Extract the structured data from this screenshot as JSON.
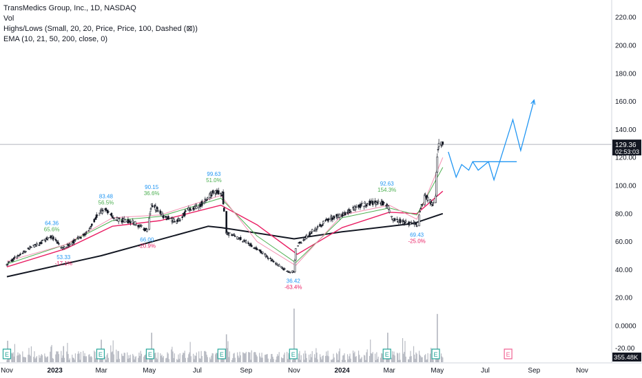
{
  "legend": {
    "title": "TransMedics Group, Inc., 1D, NASDAQ",
    "vol": "Vol",
    "highs_lows": "Highs/Lows (Small, 20, 20, Price, Price, 100, Dashed (⊠))",
    "ema": "EMA (10, 21, 50, 200, close, 0)"
  },
  "price_badge": {
    "price": "129.36",
    "countdown": "02:53:03",
    "color": "#131722"
  },
  "volume_badge": {
    "value": "355.48K"
  },
  "colors": {
    "candle": "#131722",
    "ema10": "#e91e63",
    "ema21": "#4caf50",
    "ema50": "#f48fb1",
    "ema200": "#131722",
    "projection": "#2196f3",
    "pivot_high_text": "#2196f3",
    "pivot_low_text": "#e91e63",
    "earnings_past": "#26a69a",
    "earnings_future": "#f06292",
    "volume": "#b2b5be"
  },
  "chart_data": {
    "type": "candlestick",
    "symbol": "TMDX",
    "interval": "1D",
    "exchange": "NASDAQ",
    "y_axis": {
      "ticks": [
        220,
        200,
        180,
        160,
        140,
        120,
        100,
        80,
        60,
        40,
        20,
        0
      ],
      "tick_labels": [
        "220.00",
        "200.00",
        "180.00",
        "160.00",
        "140.00",
        "120.00",
        "100.00",
        "80.00",
        "60.00",
        "40.00",
        "20.00",
        "0.0000"
      ],
      "range": [
        -16,
        228
      ]
    },
    "x_axis": {
      "tick_labels": [
        "Nov",
        "2023",
        "Mar",
        "May",
        "Jul",
        "Sep",
        "Nov",
        "2024",
        "Mar",
        "May",
        "Jul",
        "Sep",
        "Nov"
      ]
    },
    "last_price": 129.36,
    "price_path": [
      {
        "t": "2022-11-01",
        "p": 44
      },
      {
        "t": "2022-11-20",
        "p": 52
      },
      {
        "t": "2022-12-10",
        "p": 58
      },
      {
        "t": "2022-12-28",
        "p": 64
      },
      {
        "t": "2023-01-12",
        "p": 55
      },
      {
        "t": "2023-01-20",
        "p": 58
      },
      {
        "t": "2023-02-10",
        "p": 66
      },
      {
        "t": "2023-02-25",
        "p": 80
      },
      {
        "t": "2023-03-07",
        "p": 83
      },
      {
        "t": "2023-03-20",
        "p": 76
      },
      {
        "t": "2023-04-10",
        "p": 74
      },
      {
        "t": "2023-04-28",
        "p": 68
      },
      {
        "t": "2023-05-04",
        "p": 87
      },
      {
        "t": "2023-05-20",
        "p": 78
      },
      {
        "t": "2023-06-05",
        "p": 74
      },
      {
        "t": "2023-06-20",
        "p": 83
      },
      {
        "t": "2023-07-05",
        "p": 86
      },
      {
        "t": "2023-07-22",
        "p": 96
      },
      {
        "t": "2023-08-02",
        "p": 94
      },
      {
        "t": "2023-08-07",
        "p": 66
      },
      {
        "t": "2023-08-25",
        "p": 62
      },
      {
        "t": "2023-09-15",
        "p": 55
      },
      {
        "t": "2023-10-05",
        "p": 46
      },
      {
        "t": "2023-10-25",
        "p": 38
      },
      {
        "t": "2023-11-01",
        "p": 39
      },
      {
        "t": "2023-11-03",
        "p": 56
      },
      {
        "t": "2023-11-25",
        "p": 68
      },
      {
        "t": "2023-12-15",
        "p": 76
      },
      {
        "t": "2024-01-05",
        "p": 80
      },
      {
        "t": "2024-01-25",
        "p": 86
      },
      {
        "t": "2024-02-10",
        "p": 88
      },
      {
        "t": "2024-02-27",
        "p": 87
      },
      {
        "t": "2024-03-05",
        "p": 76
      },
      {
        "t": "2024-03-20",
        "p": 74
      },
      {
        "t": "2024-04-05",
        "p": 72
      },
      {
        "t": "2024-04-15",
        "p": 94
      },
      {
        "t": "2024-04-25",
        "p": 86
      },
      {
        "t": "2024-04-29",
        "p": 94
      },
      {
        "t": "2024-05-01",
        "p": 122
      },
      {
        "t": "2024-05-03",
        "p": 130
      },
      {
        "t": "2024-05-08",
        "p": 129.36
      }
    ],
    "ema_lines": [
      {
        "name": "EMA 200",
        "points": [
          {
            "t": "2022-11-01",
            "p": 35
          },
          {
            "t": "2023-03-01",
            "p": 50
          },
          {
            "t": "2023-07-15",
            "p": 71
          },
          {
            "t": "2023-08-01",
            "p": 70
          },
          {
            "t": "2023-11-01",
            "p": 62
          },
          {
            "t": "2024-01-01",
            "p": 67
          },
          {
            "t": "2024-04-01",
            "p": 73
          },
          {
            "t": "2024-05-08",
            "p": 80
          }
        ]
      },
      {
        "name": "EMA 50",
        "points": [
          {
            "t": "2022-11-01",
            "p": 42
          },
          {
            "t": "2023-01-15",
            "p": 55
          },
          {
            "t": "2023-03-15",
            "p": 71
          },
          {
            "t": "2023-05-15",
            "p": 75
          },
          {
            "t": "2023-07-31",
            "p": 86
          },
          {
            "t": "2023-09-15",
            "p": 72
          },
          {
            "t": "2023-11-05",
            "p": 51
          },
          {
            "t": "2024-01-01",
            "p": 70
          },
          {
            "t": "2024-03-01",
            "p": 81
          },
          {
            "t": "2024-04-05",
            "p": 80
          },
          {
            "t": "2024-05-08",
            "p": 96
          }
        ]
      },
      {
        "name": "EMA 21",
        "points": [
          {
            "t": "2022-11-01",
            "p": 44
          },
          {
            "t": "2023-01-15",
            "p": 58
          },
          {
            "t": "2023-03-15",
            "p": 75
          },
          {
            "t": "2023-05-15",
            "p": 78
          },
          {
            "t": "2023-07-31",
            "p": 91
          },
          {
            "t": "2023-09-15",
            "p": 64
          },
          {
            "t": "2023-11-03",
            "p": 45
          },
          {
            "t": "2024-01-01",
            "p": 77
          },
          {
            "t": "2024-03-01",
            "p": 84
          },
          {
            "t": "2024-04-05",
            "p": 79
          },
          {
            "t": "2024-05-08",
            "p": 113
          }
        ]
      },
      {
        "name": "EMA 10",
        "points": [
          {
            "t": "2022-11-01",
            "p": 46
          },
          {
            "t": "2023-01-15",
            "p": 58
          },
          {
            "t": "2023-03-15",
            "p": 77
          },
          {
            "t": "2023-05-15",
            "p": 79
          },
          {
            "t": "2023-07-31",
            "p": 93
          },
          {
            "t": "2023-09-15",
            "p": 60
          },
          {
            "t": "2023-11-03",
            "p": 43
          },
          {
            "t": "2024-01-01",
            "p": 79
          },
          {
            "t": "2024-03-01",
            "p": 86
          },
          {
            "t": "2024-04-05",
            "p": 76
          },
          {
            "t": "2024-05-08",
            "p": 120
          }
        ]
      }
    ],
    "pivot_labels": [
      {
        "kind": "high",
        "t": "2022-12-28",
        "price": 64.36,
        "value": "64.36",
        "pct": "65.6%"
      },
      {
        "kind": "low",
        "t": "2023-01-12",
        "price": 53.33,
        "value": "53.33",
        "pct": "-17.1%"
      },
      {
        "kind": "high",
        "t": "2023-03-07",
        "price": 83.48,
        "value": "83.48",
        "pct": "56.5%"
      },
      {
        "kind": "high",
        "t": "2023-05-04",
        "price": 90.15,
        "value": "90.15",
        "pct": "36.6%"
      },
      {
        "kind": "low",
        "t": "2023-04-28",
        "price": 66.0,
        "value": "66.00",
        "pct": "-20.9%"
      },
      {
        "kind": "high",
        "t": "2023-07-22",
        "price": 99.63,
        "value": "99.63",
        "pct": "51.0%"
      },
      {
        "kind": "low",
        "t": "2023-10-31",
        "price": 36.42,
        "value": "36.42",
        "pct": "-63.4%"
      },
      {
        "kind": "high",
        "t": "2024-02-27",
        "price": 92.63,
        "value": "92.63",
        "pct": "154.3%"
      },
      {
        "kind": "low",
        "t": "2024-04-05",
        "price": 69.43,
        "value": "69.43",
        "pct": "-25.0%"
      }
    ],
    "earnings": [
      {
        "t": "2022-11-01",
        "status": "past",
        "label": "E"
      },
      {
        "t": "2023-02-28",
        "status": "past",
        "label": "E"
      },
      {
        "t": "2023-05-02",
        "status": "past",
        "label": "E"
      },
      {
        "t": "2023-08-01",
        "status": "past",
        "label": "E"
      },
      {
        "t": "2023-10-31",
        "status": "past",
        "label": "E"
      },
      {
        "t": "2024-02-27",
        "status": "past",
        "label": "E"
      },
      {
        "t": "2024-04-29",
        "status": "past",
        "label": "E"
      },
      {
        "t": "2024-07-30",
        "status": "upcoming",
        "label": "E"
      }
    ],
    "projection": {
      "path": [
        {
          "t": "2024-05-15",
          "p": 124
        },
        {
          "t": "2024-05-25",
          "p": 106
        },
        {
          "t": "2024-06-01",
          "p": 115
        },
        {
          "t": "2024-06-10",
          "p": 111
        },
        {
          "t": "2024-06-15",
          "p": 117
        },
        {
          "t": "2024-06-22",
          "p": 111
        },
        {
          "t": "2024-07-05",
          "p": 117
        },
        {
          "t": "2024-07-12",
          "p": 104
        },
        {
          "t": "2024-08-05",
          "p": 147
        },
        {
          "t": "2024-08-15",
          "p": 125
        },
        {
          "t": "2024-09-01",
          "p": 161
        }
      ],
      "level_line": {
        "t_start": "2024-06-15",
        "t_end": "2024-08-10",
        "price": 117
      }
    },
    "volume_spikes": [
      {
        "t": "2023-11-01",
        "level": 1.0
      },
      {
        "t": "2024-05-01",
        "level": 0.9
      },
      {
        "t": "2023-05-04",
        "level": 0.55
      },
      {
        "t": "2023-08-07",
        "level": 0.52
      },
      {
        "t": "2023-03-01",
        "level": 0.42
      },
      {
        "t": "2024-02-28",
        "level": 0.55
      },
      {
        "t": "2023-01-12",
        "level": 0.3
      },
      {
        "t": "2022-11-02",
        "level": 0.4
      }
    ]
  }
}
